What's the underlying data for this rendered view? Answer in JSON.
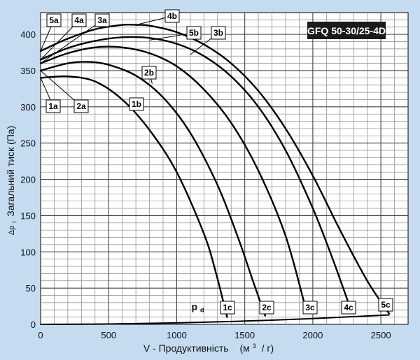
{
  "chart_data": {
    "type": "line",
    "title": "GFQ 50-30/25-4D",
    "xlabel": "V - Продуктивність",
    "xunit_base": "(м",
    "xunit_sup": "3",
    "xunit_tail": "/ г)",
    "ylabel": "Загальний тиск (Па)",
    "ylabel_symbol": "Δp",
    "ylabel_symbol_sub": "t",
    "xlim": [
      0,
      2700
    ],
    "ylim": [
      0,
      430
    ],
    "xticks": [
      "0",
      "500",
      "1000",
      "1500",
      "2000",
      "2500"
    ],
    "yticks": [
      "0",
      "50",
      "100",
      "150",
      "200",
      "250",
      "300",
      "350",
      "400"
    ],
    "grid": true,
    "series": [
      {
        "name": "1",
        "x": [
          0,
          200,
          400,
          600,
          800,
          1000,
          1200,
          1290,
          1370
        ],
        "y": [
          340,
          342,
          335,
          310,
          268,
          210,
          125,
          70,
          10
        ]
      },
      {
        "name": "2",
        "x": [
          0,
          200,
          350,
          500,
          700,
          900,
          1100,
          1300,
          1450,
          1560,
          1650
        ],
        "y": [
          350,
          360,
          362,
          358,
          343,
          313,
          264,
          192,
          120,
          60,
          12
        ]
      },
      {
        "name": "3",
        "x": [
          0,
          200,
          400,
          600,
          800,
          1000,
          1200,
          1400,
          1600,
          1800,
          1950
        ],
        "y": [
          360,
          374,
          382,
          382,
          374,
          356,
          324,
          278,
          212,
          122,
          20
        ]
      },
      {
        "name": "4",
        "x": [
          0,
          200,
          400,
          600,
          800,
          1000,
          1200,
          1400,
          1600,
          1800,
          2000,
          2150,
          2280
        ],
        "y": [
          365,
          381,
          391,
          396,
          395,
          387,
          370,
          342,
          300,
          240,
          160,
          88,
          20
        ]
      },
      {
        "name": "5",
        "x": [
          0,
          200,
          400,
          600,
          700,
          800,
          1000,
          1200,
          1400,
          1600,
          1800,
          2000,
          2200,
          2400,
          2560
        ],
        "y": [
          377,
          394,
          407,
          413,
          413,
          412,
          403,
          386,
          360,
          322,
          270,
          205,
          130,
          60,
          15
        ]
      },
      {
        "name": "pd",
        "x": [
          0,
          500,
          1000,
          1500,
          2000,
          2560
        ],
        "y": [
          0,
          0.5,
          2,
          4.5,
          8,
          13
        ]
      }
    ],
    "labels": [
      {
        "text": "1a",
        "x": 0,
        "y": 340
      },
      {
        "text": "2a",
        "x": 0,
        "y": 350
      },
      {
        "text": "3a",
        "x": 0,
        "y": 360
      },
      {
        "text": "4a",
        "x": 0,
        "y": 365
      },
      {
        "text": "5a",
        "x": 0,
        "y": 377
      },
      {
        "text": "1b",
        "x": 680,
        "y": 295
      },
      {
        "text": "2b",
        "x": 820,
        "y": 332
      },
      {
        "text": "3b",
        "x": 1100,
        "y": 372
      },
      {
        "text": "4b",
        "x": 700,
        "y": 413
      },
      {
        "text": "5b",
        "x": 800,
        "y": 392
      },
      {
        "text": "1c",
        "x": 1370,
        "y": 10
      },
      {
        "text": "2c",
        "x": 1650,
        "y": 12
      },
      {
        "text": "3c",
        "x": 1950,
        "y": 20
      },
      {
        "text": "4c",
        "x": 2280,
        "y": 20
      },
      {
        "text": "5c",
        "x": 2560,
        "y": 15
      }
    ],
    "pd_label": {
      "text": "p",
      "sub": "d",
      "x": 1160,
      "y": 8
    }
  }
}
